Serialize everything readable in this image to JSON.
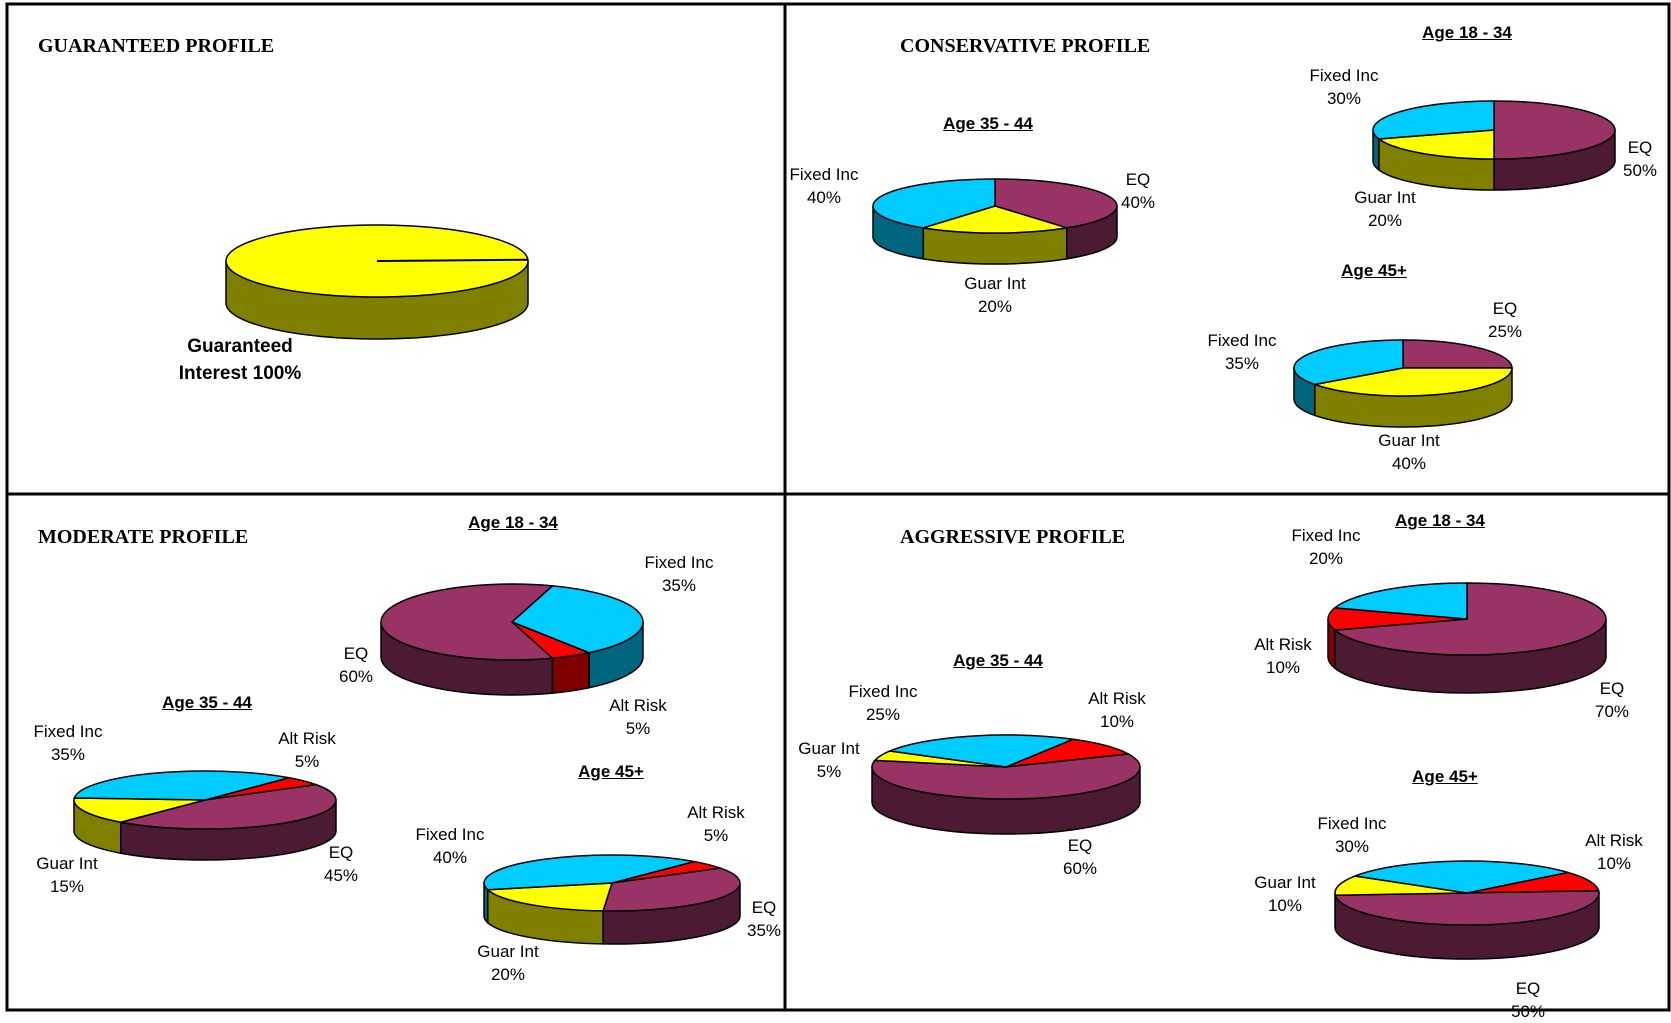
{
  "colors": {
    "EQ": "#993366",
    "Fixed Inc": "#00ccff",
    "Guar Int": "#ffff00",
    "Alt Risk": "#ff0000",
    "Guaranteed Interest": "#ffff00"
  },
  "profiles": {
    "guaranteed": {
      "title": "GUARANTEED PROFILE"
    },
    "conservative": {
      "title": "CONSERVATIVE PROFILE"
    },
    "moderate": {
      "title": "MODERATE PROFILE"
    },
    "aggressive": {
      "title": "AGGRESSIVE PROFILE"
    }
  },
  "chart_data": [
    {
      "id": "guar",
      "type": "pie",
      "profile": "GUARANTEED PROFILE",
      "title": "",
      "slices": [
        {
          "label": "Guaranteed Interest 100%",
          "name": "Guaranteed Interest",
          "value": 100
        }
      ]
    },
    {
      "id": "cons-35-44",
      "type": "pie",
      "profile": "CONSERVATIVE PROFILE",
      "title": "Age 35 - 44",
      "slices": [
        {
          "name": "EQ",
          "value": 40
        },
        {
          "name": "Guar Int",
          "value": 20
        },
        {
          "name": "Fixed Inc",
          "value": 40
        }
      ]
    },
    {
      "id": "cons-18-34",
      "type": "pie",
      "profile": "CONSERVATIVE PROFILE",
      "title": "Age 18 - 34",
      "slices": [
        {
          "name": "EQ",
          "value": 50
        },
        {
          "name": "Guar Int",
          "value": 20
        },
        {
          "name": "Fixed Inc",
          "value": 30
        }
      ]
    },
    {
      "id": "cons-45",
      "type": "pie",
      "profile": "CONSERVATIVE PROFILE",
      "title": "Age 45+",
      "slices": [
        {
          "name": "EQ",
          "value": 25
        },
        {
          "name": "Guar Int",
          "value": 40
        },
        {
          "name": "Fixed Inc",
          "value": 35
        }
      ]
    },
    {
      "id": "mod-18-34",
      "type": "pie",
      "profile": "MODERATE PROFILE",
      "title": "Age 18 - 34",
      "slices": [
        {
          "name": "Fixed Inc",
          "value": 35
        },
        {
          "name": "Alt Risk",
          "value": 5
        },
        {
          "name": "EQ",
          "value": 60
        }
      ]
    },
    {
      "id": "mod-35-44",
      "type": "pie",
      "profile": "MODERATE PROFILE",
      "title": "Age 35 - 44",
      "slices": [
        {
          "name": "Alt Risk",
          "value": 5
        },
        {
          "name": "EQ",
          "value": 45
        },
        {
          "name": "Guar Int",
          "value": 15
        },
        {
          "name": "Fixed Inc",
          "value": 35
        }
      ]
    },
    {
      "id": "mod-45",
      "type": "pie",
      "profile": "MODERATE PROFILE",
      "title": "Age 45+",
      "slices": [
        {
          "name": "Alt Risk",
          "value": 5
        },
        {
          "name": "EQ",
          "value": 35
        },
        {
          "name": "Guar Int",
          "value": 20
        },
        {
          "name": "Fixed Inc",
          "value": 40
        }
      ]
    },
    {
      "id": "agg-35-44",
      "type": "pie",
      "profile": "AGGRESSIVE PROFILE",
      "title": "Age 35 - 44",
      "slices": [
        {
          "name": "Alt Risk",
          "value": 10
        },
        {
          "name": "EQ",
          "value": 60
        },
        {
          "name": "Guar Int",
          "value": 5
        },
        {
          "name": "Fixed Inc",
          "value": 25
        }
      ]
    },
    {
      "id": "agg-18-34",
      "type": "pie",
      "profile": "AGGRESSIVE PROFILE",
      "title": "Age 18 - 34",
      "slices": [
        {
          "name": "EQ",
          "value": 70
        },
        {
          "name": "Alt Risk",
          "value": 10
        },
        {
          "name": "Fixed Inc",
          "value": 20
        }
      ]
    },
    {
      "id": "agg-45",
      "type": "pie",
      "profile": "AGGRESSIVE PROFILE",
      "title": "Age 45+",
      "slices": [
        {
          "name": "Alt Risk",
          "value": 10
        },
        {
          "name": "EQ",
          "value": 50
        },
        {
          "name": "Guar Int",
          "value": 10
        },
        {
          "name": "Fixed Inc",
          "value": 30
        }
      ]
    }
  ]
}
